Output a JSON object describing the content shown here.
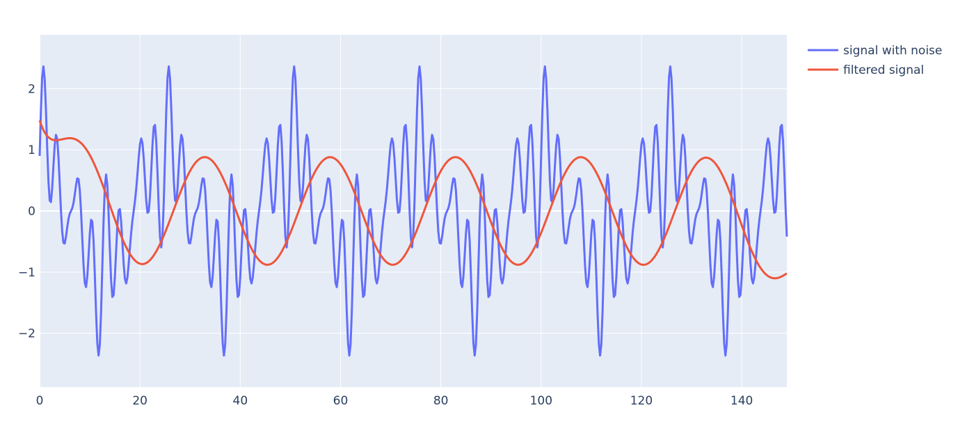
{
  "colors": {
    "background": "#ffffff",
    "plot_background": "#e5ecf6",
    "grid": "#ffffff",
    "text": "#2a3f5f"
  },
  "chart_data": {
    "type": "line",
    "title": "",
    "xlabel": "",
    "ylabel": "",
    "xlim": [
      0,
      149
    ],
    "ylim": [
      -2.88,
      2.88
    ],
    "x_ticks": [
      0,
      20,
      40,
      60,
      80,
      100,
      120,
      140
    ],
    "x_tick_labels": [
      "0",
      "20",
      "40",
      "60",
      "80",
      "100",
      "120",
      "140"
    ],
    "y_ticks": [
      -2,
      -1,
      0,
      1,
      2
    ],
    "y_tick_labels": [
      "−2",
      "−1",
      "0",
      "1",
      "2"
    ],
    "grid": true,
    "legend": {
      "position": "top-right-outside"
    },
    "x": {
      "start": 0,
      "end": 149,
      "step": 0.25
    },
    "period": 50,
    "series": [
      {
        "name": "signal with noise",
        "color": "#636efa",
        "model": "sum of sines",
        "components": [
          {
            "amplitude": 0.9,
            "period": 25,
            "phase_deg": 90
          },
          {
            "amplitude": 0.45,
            "period": 6.25,
            "phase_deg": 0
          },
          {
            "amplitude": 0.65,
            "period": 3.125,
            "phase_deg": 0
          },
          {
            "amplitude": 0.55,
            "period": 2.5,
            "phase_deg": 0
          }
        ]
      },
      {
        "name": "filtered signal",
        "color": "#ef553b",
        "model": "smooth sinusoid with edge transients",
        "components": [
          {
            "amplitude": 0.88,
            "period": 25,
            "phase_deg": -24
          }
        ],
        "start_value": 1.48,
        "end_value": -1.02
      }
    ]
  }
}
